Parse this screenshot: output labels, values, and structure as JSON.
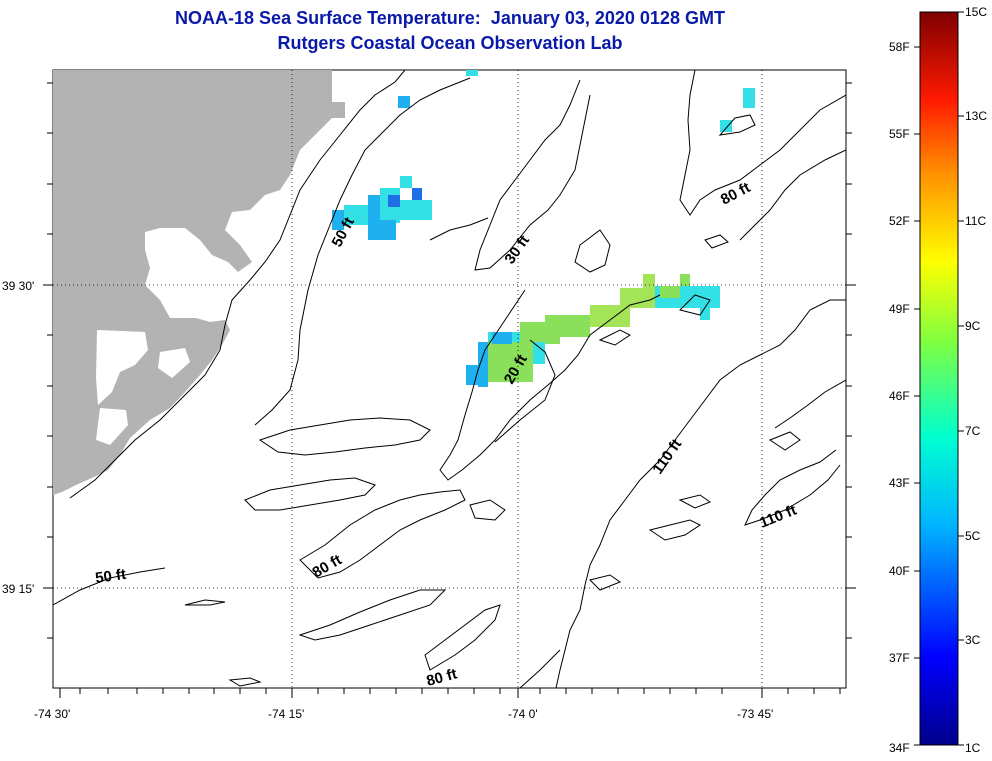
{
  "title": {
    "line1": "NOAA-18 Sea Surface Temperature:  January 03, 2020 0128 GMT",
    "line2": "Rutgers Coastal Ocean Observation Lab"
  },
  "axes": {
    "x_ticks": [
      "-74 30'",
      "-74 15'",
      "-74 0'",
      "-73 45'"
    ],
    "y_ticks": [
      "39 30'",
      "39 15'"
    ]
  },
  "contour_labels": {
    "c1": "50 ft",
    "c2": "30 ft",
    "c3": "80 ft",
    "c4": "20 ft",
    "c5": "110 ft",
    "c6": "110 ft",
    "c7": "50 ft",
    "c8": "80 ft",
    "c9": "80 ft"
  },
  "colorbar": {
    "left_labels": [
      "58F",
      "55F",
      "52F",
      "49F",
      "46F",
      "43F",
      "40F",
      "37F",
      "34F"
    ],
    "right_labels": [
      "15C",
      "13C",
      "11C",
      "9C",
      "7C",
      "5C",
      "3C",
      "1C"
    ],
    "min_c": 1,
    "max_c": 15
  },
  "colors": {
    "title": "#0a1aa8",
    "land": "#b3b3b3",
    "sst_cold": "#1fb0ef",
    "sst_cyan": "#33e0e6",
    "sst_green": "#8ae05a"
  }
}
